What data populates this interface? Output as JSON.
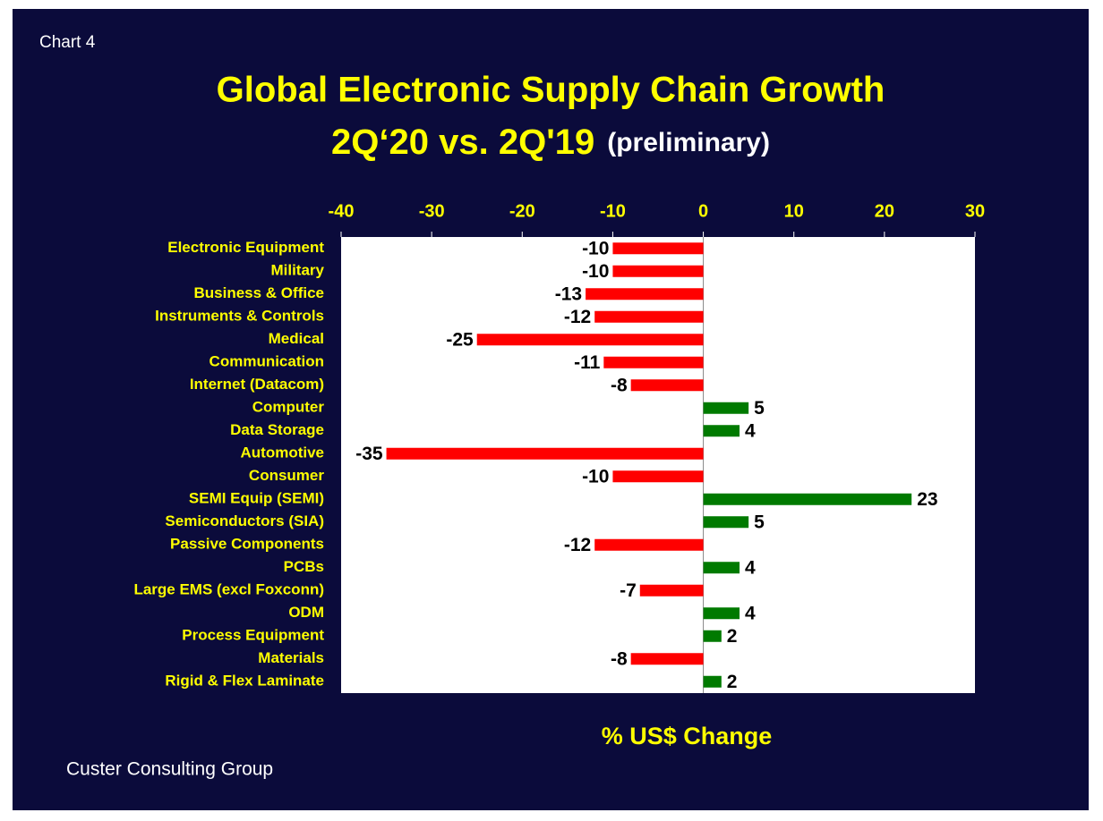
{
  "chart_data": {
    "type": "hbar",
    "label": "Chart 4",
    "title": [
      "Global Electronic Supply Chain Growth",
      "2Q‘20 vs. 2Q'19"
    ],
    "subtitle": "(preliminary)",
    "xlabel": "% US$ Change",
    "source": "Custer Consulting Group",
    "categories": [
      "Electronic Equipment",
      "Military",
      "Business & Office",
      "Instruments & Controls",
      "Medical",
      "Communication",
      "Internet (Datacom)",
      "Computer",
      "Data Storage",
      "Automotive",
      "Consumer",
      "SEMI Equip (SEMI)",
      "Semiconductors (SIA)",
      "Passive Components",
      "PCBs",
      "Large EMS (excl Foxconn)",
      "ODM",
      "Process Equipment",
      "Materials",
      "Rigid & Flex Laminate"
    ],
    "values": [
      -10,
      -10,
      -13,
      -12,
      -25,
      -11,
      -8,
      5,
      4,
      -35,
      -10,
      23,
      5,
      -12,
      4,
      -7,
      4,
      2,
      -8,
      2
    ],
    "negative_color": "#ff0000",
    "positive_color": "#007a00",
    "xlim": [
      -40,
      30
    ],
    "xticks": [
      -40,
      -30,
      -20,
      -10,
      0,
      10,
      20,
      30
    ],
    "grid": false
  }
}
